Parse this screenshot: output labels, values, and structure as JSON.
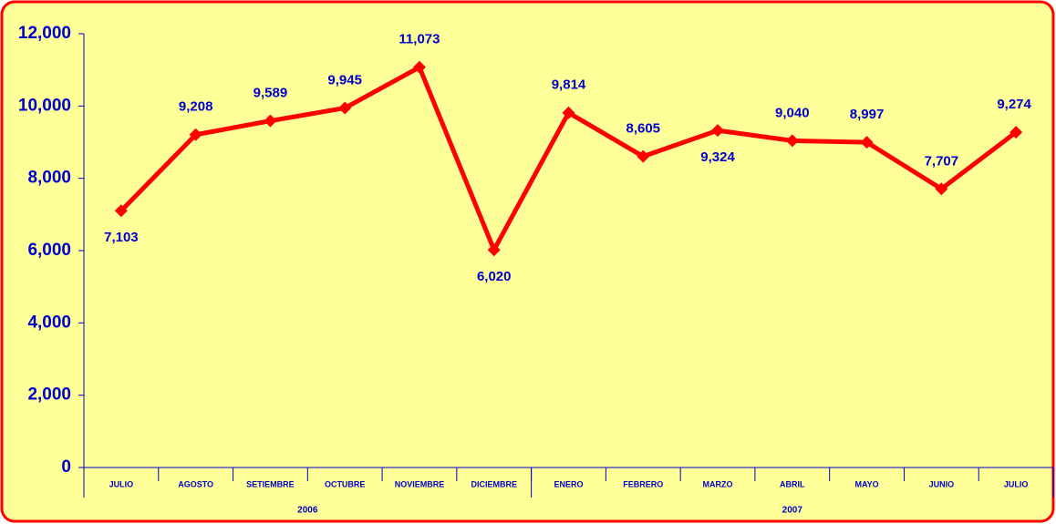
{
  "chart_data": {
    "type": "line",
    "categories": [
      "JULIO",
      "AGOSTO",
      "SETIEMBRE",
      "OCTUBRE",
      "NOVIEMBRE",
      "DICIEMBRE",
      "ENERO",
      "FEBRERO",
      "MARZO",
      "ABRIL",
      "MAYO",
      "JUNIO",
      "JULIO"
    ],
    "category_groups": [
      {
        "label": "2006",
        "size": 6
      },
      {
        "label": "2007",
        "size": 7
      }
    ],
    "series": [
      {
        "color": "#ff0000",
        "values": [
          7103,
          9208,
          9589,
          9945,
          11073,
          6020,
          9814,
          8605,
          9324,
          9040,
          8997,
          7707,
          9274
        ],
        "value_labels": [
          "7,103",
          "9,208",
          "9,589",
          "9,945",
          "11,073",
          "6,020",
          "9,814",
          "8,605",
          "9,324",
          "9,040",
          "8,997",
          "7,707",
          "9,274"
        ]
      }
    ],
    "ylim": [
      0,
      12000
    ],
    "yticks": [
      0,
      {
        "value": 2000,
        "label": "2,000"
      },
      {
        "value": 4000,
        "label": "4,000"
      },
      {
        "value": 6000,
        "label": "6,000"
      },
      {
        "value": 8000,
        "label": "8,000"
      },
      {
        "value": 10000,
        "label": "10,000"
      },
      {
        "value": 12000,
        "label": "12,000"
      }
    ],
    "background": "#ffff99",
    "border_color": "#ff0000"
  }
}
